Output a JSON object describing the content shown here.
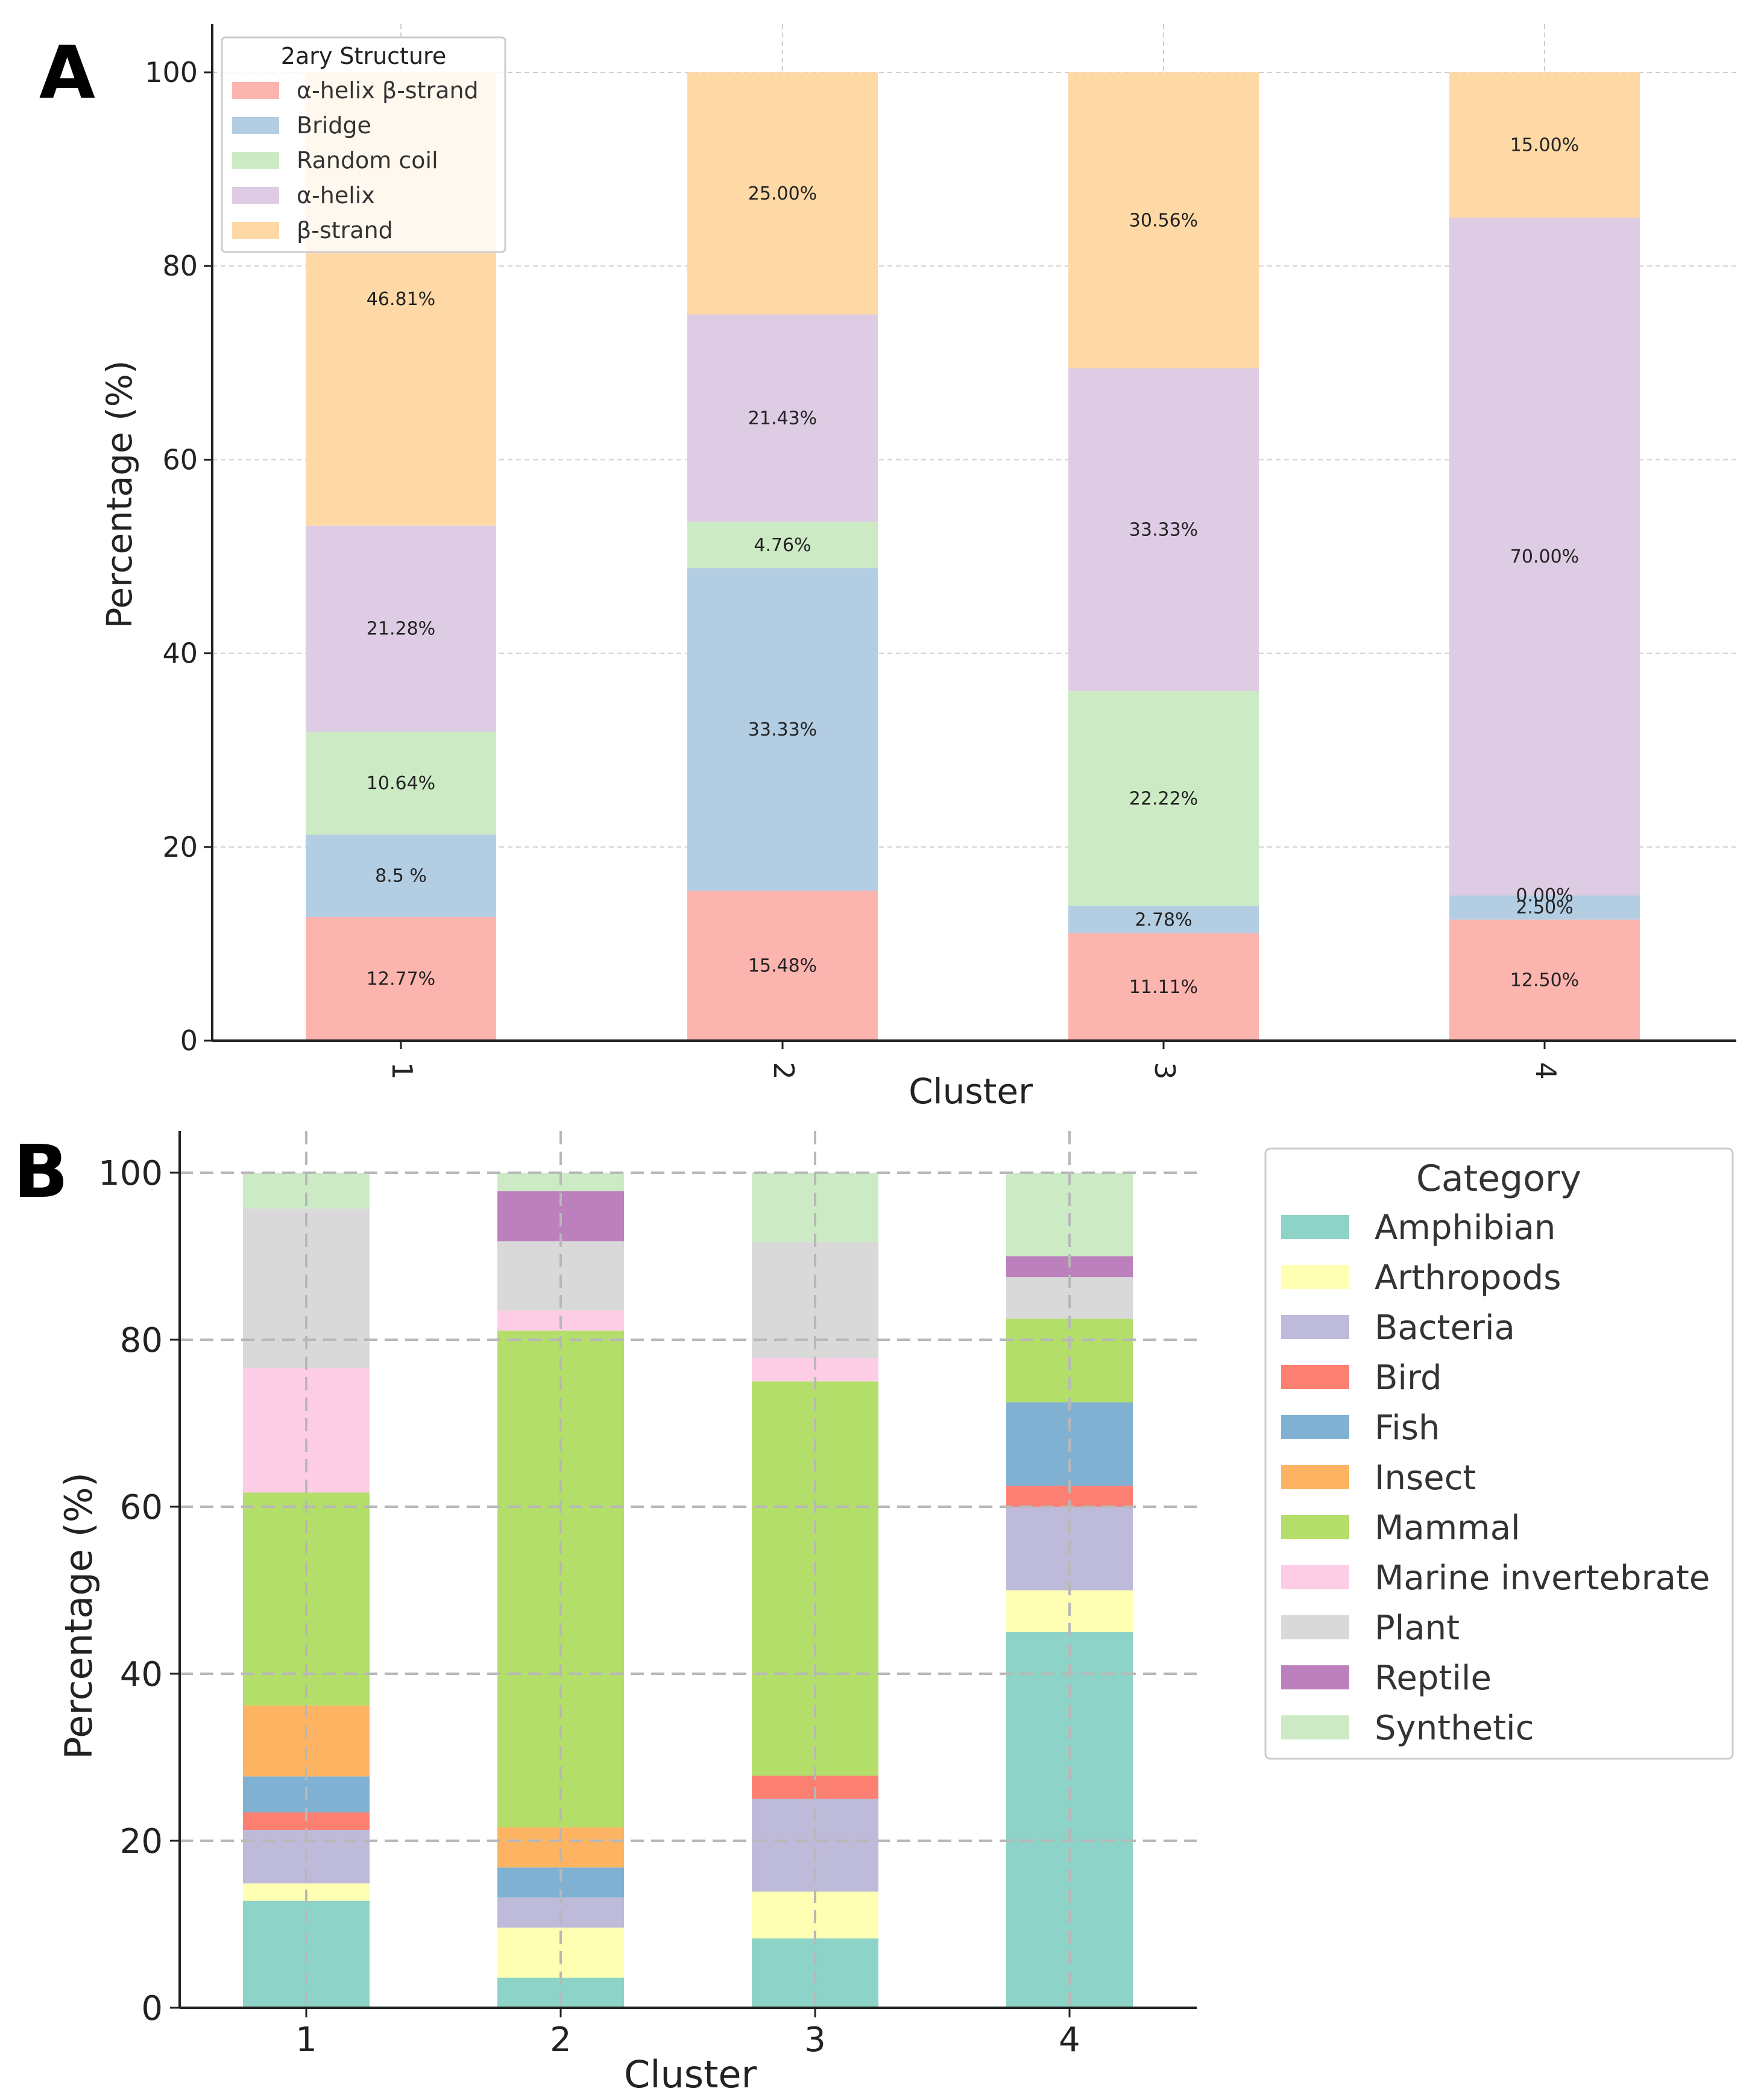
{
  "chart_data": [
    {
      "panel_label": "A",
      "type": "bar",
      "stacked": true,
      "xlabel": "Cluster",
      "ylabel": "Percentage (%)",
      "ylim": [
        0,
        105
      ],
      "yticks": [
        0,
        20,
        40,
        60,
        80,
        100
      ],
      "grid": true,
      "categories": [
        "1",
        "2",
        "3",
        "4"
      ],
      "legend": {
        "title": "2ary Structure",
        "placement": "top-left",
        "entries": [
          "α-helix  β-strand",
          "Bridge",
          "Random coil",
          "α-helix",
          "β-strand"
        ]
      },
      "series": [
        {
          "name": "α-helix  β-strand",
          "color": "#fbb4ae",
          "values": [
            12.77,
            15.48,
            11.11,
            12.5
          ],
          "labels": [
            "12.77%",
            "15.48%",
            "11.11%",
            "12.50%"
          ]
        },
        {
          "name": "Bridge",
          "color": "#b3cde3",
          "values": [
            8.5,
            33.33,
            2.78,
            2.5
          ],
          "labels": [
            "8.5  %",
            "33.33%",
            "2.78%",
            "2.50%"
          ]
        },
        {
          "name": "Random coil",
          "color": "#ccebc5",
          "values": [
            10.64,
            4.76,
            22.22,
            0
          ],
          "labels": [
            "10.64%",
            "4.76%",
            "22.22%",
            "0.00%"
          ]
        },
        {
          "name": "α-helix",
          "color": "#decbe4",
          "values": [
            21.28,
            21.43,
            33.33,
            70.0
          ],
          "labels": [
            "21.28%",
            "21.43%",
            "33.33%",
            "70.00%"
          ]
        },
        {
          "name": "β-strand",
          "color": "#fed9a6",
          "values": [
            46.81,
            25.0,
            30.56,
            15.0
          ],
          "labels": [
            "46.81%",
            "25.00%",
            "30.56%",
            "15.00%"
          ]
        }
      ]
    },
    {
      "panel_label": "B",
      "type": "bar",
      "stacked": true,
      "xlabel": "Cluster",
      "ylabel": "Percentage (%)",
      "ylim": [
        0,
        105
      ],
      "yticks": [
        0,
        20,
        40,
        60,
        80,
        100
      ],
      "grid": true,
      "categories": [
        "1",
        "2",
        "3",
        "4"
      ],
      "legend": {
        "title": "Category",
        "placement": "outside-right",
        "entries": [
          "Amphibian",
          "Arthropods",
          "Bacteria",
          "Bird",
          "Fish",
          "Insect",
          "Mammal",
          "Marine invertebrate",
          "Plant",
          "Reptile",
          "Synthetic"
        ]
      },
      "series": [
        {
          "name": "Amphibian",
          "color": "#8dd3c7",
          "values": [
            12.8,
            3.6,
            8.3,
            45.0
          ]
        },
        {
          "name": "Arthropods",
          "color": "#ffffb3",
          "values": [
            2.1,
            6.0,
            5.6,
            5.0
          ]
        },
        {
          "name": "Bacteria",
          "color": "#bebada",
          "values": [
            6.4,
            3.6,
            11.1,
            10.0
          ]
        },
        {
          "name": "Bird",
          "color": "#fb8072",
          "values": [
            2.1,
            0,
            2.8,
            2.5
          ]
        },
        {
          "name": "Fish",
          "color": "#80b1d3",
          "values": [
            4.3,
            3.6,
            0,
            10.0
          ]
        },
        {
          "name": "Insect",
          "color": "#fdb462",
          "values": [
            8.5,
            4.8,
            0,
            0
          ]
        },
        {
          "name": "Mammal",
          "color": "#b3de69",
          "values": [
            25.5,
            59.5,
            47.2,
            10.0
          ]
        },
        {
          "name": "Marine invertebrate",
          "color": "#fccde5",
          "values": [
            14.9,
            2.4,
            2.8,
            0
          ]
        },
        {
          "name": "Plant",
          "color": "#d9d9d9",
          "values": [
            19.1,
            8.3,
            13.9,
            5.0
          ]
        },
        {
          "name": "Reptile",
          "color": "#bc80bd",
          "values": [
            0,
            6.0,
            0,
            2.5
          ]
        },
        {
          "name": "Synthetic",
          "color": "#ccebc5",
          "values": [
            4.3,
            2.2,
            8.3,
            10.0
          ]
        }
      ]
    }
  ]
}
